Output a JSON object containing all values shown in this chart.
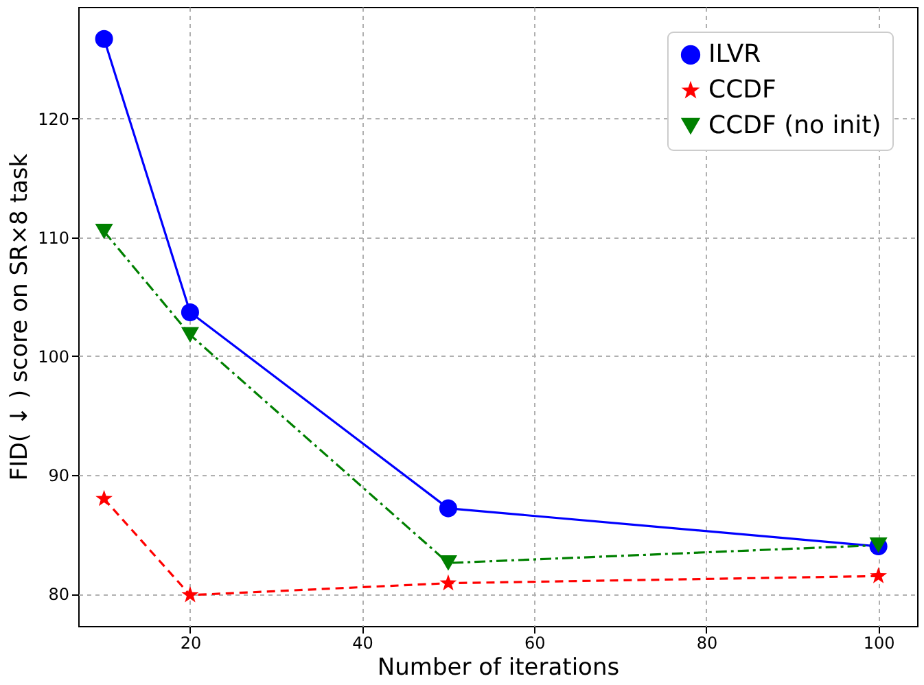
{
  "chart_data": {
    "type": "line",
    "xlabel": "Number of iterations",
    "ylabel": "FID( ↓ ) score on SR×8 task",
    "x": [
      10,
      20,
      50,
      100
    ],
    "series": [
      {
        "name": "ILVR",
        "color": "#0000ff",
        "values": [
          126.7,
          103.7,
          87.2,
          84.0
        ],
        "marker": "circle",
        "line_style": "solid"
      },
      {
        "name": "CCDF",
        "color": "#ff0000",
        "values": [
          88.0,
          79.9,
          80.9,
          81.5
        ],
        "marker": "star",
        "line_style": "dashed"
      },
      {
        "name": "CCDF (no init)",
        "color": "#008000",
        "values": [
          110.5,
          101.8,
          82.6,
          84.1
        ],
        "marker": "triangle",
        "line_style": "dashdot"
      }
    ],
    "xlim": [
      7,
      104.5
    ],
    "xticks": [
      20,
      40,
      60,
      80,
      100
    ],
    "ylim": [
      77.3,
      129.4
    ],
    "yticks": [
      80,
      90,
      100,
      110,
      120
    ],
    "grid": true,
    "legend": "top right"
  }
}
